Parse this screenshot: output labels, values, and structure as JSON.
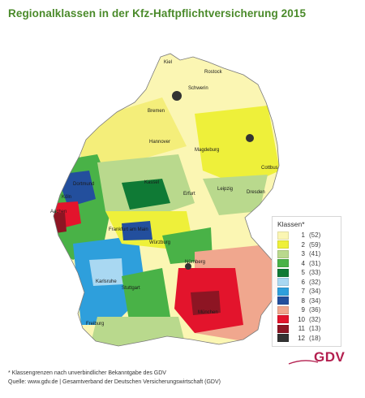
{
  "title": "Regionalklassen in der Kfz-Haftpflichtversicherung 2015",
  "legend": {
    "title": "Klassen*",
    "items": [
      {
        "klasse": "1",
        "count": "(52)",
        "color": "#fbf6b3"
      },
      {
        "klasse": "2",
        "count": "(59)",
        "color": "#eef03a"
      },
      {
        "klasse": "3",
        "count": "(41)",
        "color": "#b9d98d"
      },
      {
        "klasse": "4",
        "count": "(31)",
        "color": "#49b247"
      },
      {
        "klasse": "5",
        "count": "(33)",
        "color": "#0f7a35"
      },
      {
        "klasse": "6",
        "count": "(32)",
        "color": "#a9d8f2"
      },
      {
        "klasse": "7",
        "count": "(34)",
        "color": "#2e9fdc"
      },
      {
        "klasse": "8",
        "count": "(34)",
        "color": "#234f9d"
      },
      {
        "klasse": "9",
        "count": "(36)",
        "color": "#f0a78e"
      },
      {
        "klasse": "10",
        "count": "(32)",
        "color": "#e3142c"
      },
      {
        "klasse": "11",
        "count": "(13)",
        "color": "#8d1523"
      },
      {
        "klasse": "12",
        "count": "(18)",
        "color": "#333333"
      }
    ]
  },
  "cities": [
    {
      "name": "Kiel"
    },
    {
      "name": "Rostock"
    },
    {
      "name": "Schwerin"
    },
    {
      "name": "Bremen"
    },
    {
      "name": "Hannover"
    },
    {
      "name": "Magdeburg"
    },
    {
      "name": "Cottbus"
    },
    {
      "name": "Dortmund"
    },
    {
      "name": "Kassel"
    },
    {
      "name": "Erfurt"
    },
    {
      "name": "Leipzig"
    },
    {
      "name": "Dresden"
    },
    {
      "name": "Köln"
    },
    {
      "name": "Aachen"
    },
    {
      "name": "Frankfurt am Main"
    },
    {
      "name": "Würzburg"
    },
    {
      "name": "Nürnberg"
    },
    {
      "name": "Karlsruhe"
    },
    {
      "name": "Stuttgart"
    },
    {
      "name": "München"
    },
    {
      "name": "Freiburg"
    }
  ],
  "brand": "GDV",
  "footnote": "* Klassengrenzen nach unverbindlicher Bekanntgabe des GDV",
  "source": "Quelle: www.gdv.de | Gesamtverband der Deutschen Versicherungswirtschaft (GDV)"
}
